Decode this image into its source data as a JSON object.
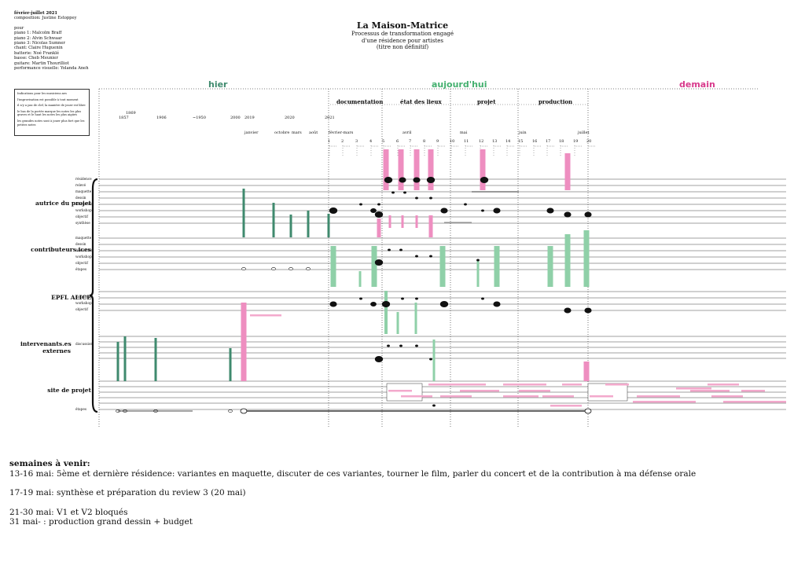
{
  "meta": {
    "date": "février-juillet 2021",
    "composition": "composition: Justine Estoppey",
    "lines": [
      "pour",
      "piano 1: Malcolm Braff",
      "piano 2: Alvin Schwaar",
      "piano 3: Nicolas Sumner",
      "chant: Claire Huguenin",
      "batterie: Noé Franklé",
      "basse: Cheb Meunier",
      "guitare: Martin Thourilliot",
      "performance visuelle: Yolanda Aneh"
    ]
  },
  "title": {
    "main": "La Maison-Matrice",
    "line1": "Processus de transformation engagé",
    "line2": "d'une résidence pour artistes",
    "line3": "(titre non définitif)"
  },
  "notes": [
    "Indications pour les musiciens.nes",
    "l'improvisation est possible à tout moment",
    "il n'y a pas de clef, la manière de jouer est libre",
    "le bas de la portée marque les notes les plus graves et le haut les notes les plus aigües",
    "les grandes notes sont à jouer plus fort que les petites notes"
  ],
  "eras": {
    "past": "hier",
    "present": "aujourd'hui",
    "future": "demain"
  },
  "colors": {
    "past": "#3f8a6e",
    "present": "#44b06f",
    "future": "#d83a8c",
    "green_bar": "#8fd0a8",
    "pink_bar": "#ee8ec0"
  },
  "phases": [
    "documentation",
    "état des lieux",
    "projet",
    "production"
  ],
  "years": [
    "1869",
    "1857",
    "1906",
    "~1950",
    "2000",
    "2019",
    "2020",
    "2021"
  ],
  "months": [
    "janvier",
    "octobre",
    "mars",
    "août",
    "février-mars",
    "avril",
    "mai",
    "juin",
    "juillet"
  ],
  "weeks": [
    "1",
    "2",
    "3",
    "4",
    "5",
    "6",
    "7",
    "8",
    "9",
    "10",
    "11",
    "12",
    "13",
    "14",
    "15",
    "16",
    "17",
    "18",
    "19",
    "20"
  ],
  "groups": [
    {
      "name": "autrice du projet",
      "rows": [
        "résidence",
        "relevé",
        "maquette",
        "dessin",
        "discussion",
        "workshop",
        "objectif",
        "synthèse"
      ]
    },
    {
      "name": "contributeurs.ices",
      "rows": [
        "maquette",
        "dessin",
        "discussion",
        "workshop",
        "objectif",
        "étapes"
      ]
    },
    {
      "name": "EPFL ALICE",
      "rows": [
        "discussion",
        "workshop",
        "objectif"
      ]
    },
    {
      "name": "intervenants.es externes",
      "rows": [
        "discussion"
      ]
    },
    {
      "name": "site de projet",
      "rows": [
        "étapes"
      ]
    }
  ],
  "upcoming": {
    "heading": "semaines à venir:",
    "items": [
      "13-16 mai: 5ème et dernière résidence: variantes en maquette, discuter de ces variantes, tourner le film, parler du concert et de la contribution à ma défense orale",
      "17-19 mai: synthèse et préparation du review 3 (20 mai)",
      "21-30 mai: V1 et V2 bloqués",
      "31 mai- : production grand dessin + budget"
    ]
  }
}
